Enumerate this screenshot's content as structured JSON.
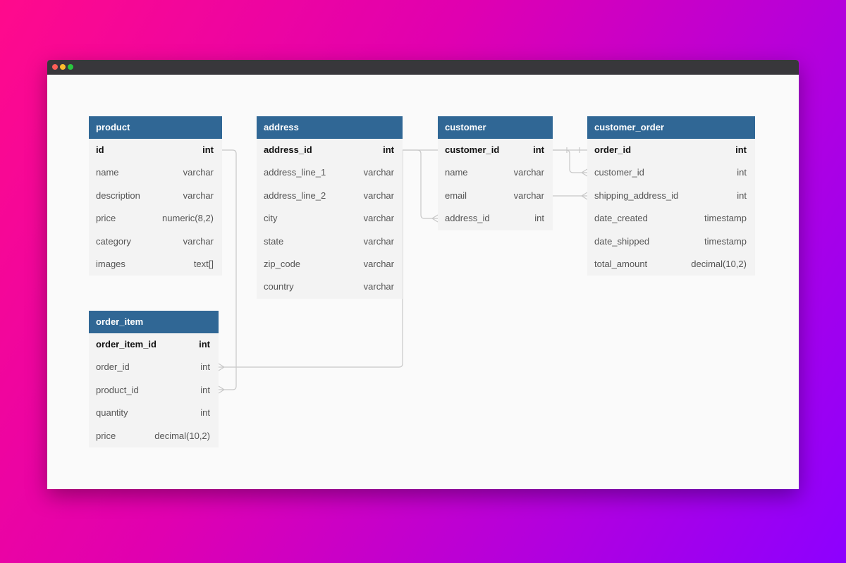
{
  "tables": [
    {
      "name": "product",
      "columns": [
        {
          "name": "id",
          "type": "int"
        },
        {
          "name": "name",
          "type": "varchar"
        },
        {
          "name": "description",
          "type": "varchar"
        },
        {
          "name": "price",
          "type": "numeric(8,2)"
        },
        {
          "name": "category",
          "type": "varchar"
        },
        {
          "name": "images",
          "type": "text[]"
        }
      ]
    },
    {
      "name": "address",
      "columns": [
        {
          "name": "address_id",
          "type": "int"
        },
        {
          "name": "address_line_1",
          "type": "varchar"
        },
        {
          "name": "address_line_2",
          "type": "varchar"
        },
        {
          "name": "city",
          "type": "varchar"
        },
        {
          "name": "state",
          "type": "varchar"
        },
        {
          "name": "zip_code",
          "type": "varchar"
        },
        {
          "name": "country",
          "type": "varchar"
        }
      ]
    },
    {
      "name": "customer",
      "columns": [
        {
          "name": "customer_id",
          "type": "int"
        },
        {
          "name": "name",
          "type": "varchar"
        },
        {
          "name": "email",
          "type": "varchar"
        },
        {
          "name": "address_id",
          "type": "int"
        }
      ]
    },
    {
      "name": "customer_order",
      "columns": [
        {
          "name": "order_id",
          "type": "int"
        },
        {
          "name": "customer_id",
          "type": "int"
        },
        {
          "name": "shipping_address_id",
          "type": "int"
        },
        {
          "name": "date_created",
          "type": "timestamp"
        },
        {
          "name": "date_shipped",
          "type": "timestamp"
        },
        {
          "name": "total_amount",
          "type": "decimal(10,2)"
        }
      ]
    },
    {
      "name": "order_item",
      "columns": [
        {
          "name": "order_item_id",
          "type": "int"
        },
        {
          "name": "order_id",
          "type": "int"
        },
        {
          "name": "product_id",
          "type": "int"
        },
        {
          "name": "quantity",
          "type": "int"
        },
        {
          "name": "price",
          "type": "decimal(10,2)"
        }
      ]
    }
  ]
}
